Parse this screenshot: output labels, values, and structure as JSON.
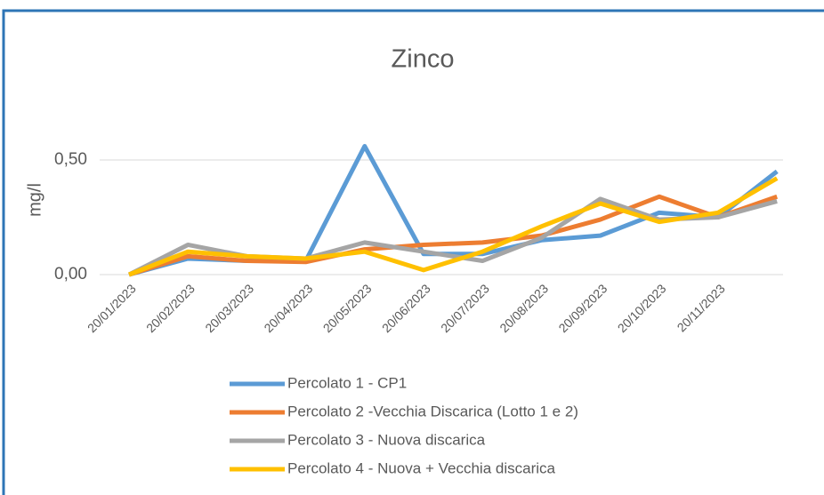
{
  "chart_data": {
    "type": "line",
    "title": "Zinco",
    "y_label": "mg/l",
    "categories": [
      "20/01/2023",
      "20/02/2023",
      "20/03/2023",
      "20/04/2023",
      "20/05/2023",
      "20/06/2023",
      "20/07/2023",
      "20/08/2023",
      "20/09/2023",
      "20/10/2023",
      "20/11/2023",
      null
    ],
    "series": [
      {
        "name": "Percolato 1 - CP1",
        "color": "#5b9bd5",
        "values": [
          0,
          0.07,
          0.06,
          0.06,
          0.56,
          0.09,
          0.09,
          0.15,
          0.17,
          0.27,
          0.25,
          0.45
        ]
      },
      {
        "name": "Percolato 2 -Vecchia Discarica (Lotto 1 e 2)",
        "color": "#ed7d31",
        "values": [
          0,
          0.08,
          0.06,
          0.055,
          0.11,
          0.13,
          0.14,
          0.17,
          0.24,
          0.34,
          0.25,
          0.34
        ]
      },
      {
        "name": "Percolato 3 - Nuova discarica",
        "color": "#a5a5a5",
        "values": [
          0,
          0.13,
          0.08,
          0.07,
          0.14,
          0.1,
          0.06,
          0.16,
          0.33,
          0.24,
          0.25,
          0.32
        ]
      },
      {
        "name": "Percolato 4 - Nuova + Vecchia discarica",
        "color": "#ffc000",
        "values": [
          0,
          0.1,
          0.08,
          0.07,
          0.1,
          0.02,
          0.1,
          0.21,
          0.31,
          0.23,
          0.27,
          0.42
        ]
      }
    ],
    "ylim": [
      0,
      0.6
    ],
    "yticks": [
      {
        "value": 0,
        "label": "0,00"
      },
      {
        "value": 0.5,
        "label": "0,50"
      }
    ],
    "grid": true
  }
}
